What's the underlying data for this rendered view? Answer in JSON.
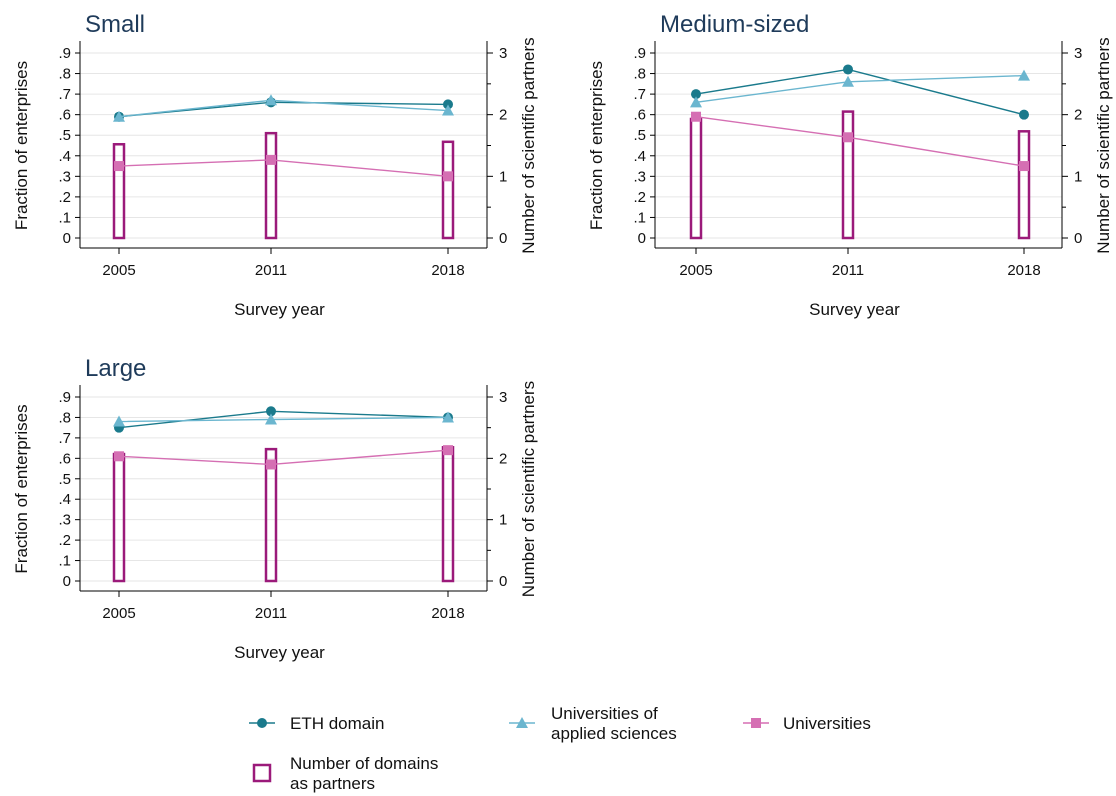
{
  "chart_data": [
    {
      "type": "line",
      "title": "Small",
      "xlabel": "Survey year",
      "ylabel": "Fraction of enterprises",
      "y2label": "Number of scientific partners",
      "categories": [
        "2005",
        "2011",
        "2018"
      ],
      "ylim": [
        0,
        0.9
      ],
      "y2lim": [
        0,
        3
      ],
      "yticks": [
        "0",
        ".1",
        ".2",
        ".3",
        ".4",
        ".5",
        ".6",
        ".7",
        ".8",
        ".9"
      ],
      "y2ticks": [
        "0",
        "1",
        "2",
        "3"
      ],
      "grid": true,
      "series": [
        {
          "name": "ETH domain",
          "axis": "left",
          "marker": "circle",
          "color": "#1a7a8c",
          "values": [
            0.59,
            0.66,
            0.65
          ]
        },
        {
          "name": "Universities of applied sciences",
          "axis": "left",
          "marker": "triangle",
          "color": "#6bb6cf",
          "values": [
            0.59,
            0.67,
            0.62
          ]
        },
        {
          "name": "Universities",
          "axis": "left",
          "marker": "square",
          "color": "#d56fb3",
          "values": [
            0.35,
            0.38,
            0.3
          ]
        },
        {
          "name": "Number of domains as partners",
          "axis": "right",
          "marker": "hollow-bar",
          "color": "#9b1a7a",
          "values": [
            1.52,
            1.7,
            1.56
          ]
        }
      ]
    },
    {
      "type": "line",
      "title": "Medium-sized",
      "xlabel": "Survey year",
      "ylabel": "Fraction of enterprises",
      "y2label": "Number of scientific partners",
      "categories": [
        "2005",
        "2011",
        "2018"
      ],
      "ylim": [
        0,
        0.9
      ],
      "y2lim": [
        0,
        3
      ],
      "yticks": [
        "0",
        ".1",
        ".2",
        ".3",
        ".4",
        ".5",
        ".6",
        ".7",
        ".8",
        ".9"
      ],
      "y2ticks": [
        "0",
        "1",
        "2",
        "3"
      ],
      "grid": true,
      "series": [
        {
          "name": "ETH domain",
          "axis": "left",
          "marker": "circle",
          "color": "#1a7a8c",
          "values": [
            0.7,
            0.82,
            0.6
          ]
        },
        {
          "name": "Universities of applied sciences",
          "axis": "left",
          "marker": "triangle",
          "color": "#6bb6cf",
          "values": [
            0.66,
            0.76,
            0.79
          ]
        },
        {
          "name": "Universities",
          "axis": "left",
          "marker": "square",
          "color": "#d56fb3",
          "values": [
            0.59,
            0.49,
            0.35
          ]
        },
        {
          "name": "Number of domains as partners",
          "axis": "right",
          "marker": "hollow-bar",
          "color": "#9b1a7a",
          "values": [
            1.93,
            2.05,
            1.73
          ]
        }
      ]
    },
    {
      "type": "line",
      "title": "Large",
      "xlabel": "Survey year",
      "ylabel": "Fraction of enterprises",
      "y2label": "Number of scientific partners",
      "categories": [
        "2005",
        "2011",
        "2018"
      ],
      "ylim": [
        0,
        0.9
      ],
      "y2lim": [
        0,
        3
      ],
      "yticks": [
        "0",
        ".1",
        ".2",
        ".3",
        ".4",
        ".5",
        ".6",
        ".7",
        ".8",
        ".9"
      ],
      "y2ticks": [
        "0",
        "1",
        "2",
        "3"
      ],
      "grid": true,
      "series": [
        {
          "name": "ETH domain",
          "axis": "left",
          "marker": "circle",
          "color": "#1a7a8c",
          "values": [
            0.75,
            0.83,
            0.8
          ]
        },
        {
          "name": "Universities of applied sciences",
          "axis": "left",
          "marker": "triangle",
          "color": "#6bb6cf",
          "values": [
            0.78,
            0.79,
            0.8
          ]
        },
        {
          "name": "Universities",
          "axis": "left",
          "marker": "square",
          "color": "#d56fb3",
          "values": [
            0.61,
            0.57,
            0.64
          ]
        },
        {
          "name": "Number of domains as partners",
          "axis": "right",
          "marker": "hollow-bar",
          "color": "#9b1a7a",
          "values": [
            2.07,
            2.15,
            2.18
          ]
        }
      ]
    }
  ],
  "legend": {
    "placement": "bottom",
    "items": [
      {
        "lines": [
          "ETH domain"
        ],
        "marker": "circle",
        "color": "#1a7a8c"
      },
      {
        "lines": [
          "Universities of",
          "applied sciences"
        ],
        "marker": "triangle",
        "color": "#6bb6cf"
      },
      {
        "lines": [
          "Universities"
        ],
        "marker": "square",
        "color": "#d56fb3"
      },
      {
        "lines": [
          "Number of domains",
          "as partners"
        ],
        "marker": "hollow-bar",
        "color": "#9b1a7a"
      }
    ]
  }
}
